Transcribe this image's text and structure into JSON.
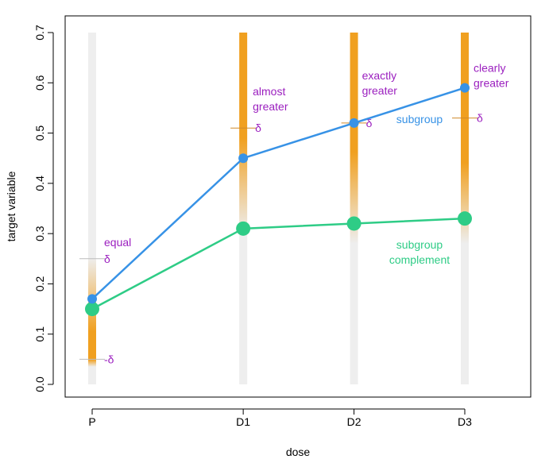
{
  "chart_data": {
    "type": "line",
    "xlabel": "dose",
    "ylabel": "target variable",
    "ylim": [
      0.0,
      0.7
    ],
    "yticks": [
      0.0,
      0.1,
      0.2,
      0.3,
      0.4,
      0.5,
      0.6,
      0.7
    ],
    "ytick_labels": [
      "0.0",
      "0.1",
      "0.2",
      "0.3",
      "0.4",
      "0.5",
      "0.6",
      "0.7"
    ],
    "categories": [
      "P",
      "D1",
      "D2",
      "D3"
    ],
    "x": [
      0,
      3,
      5.2,
      7.4
    ],
    "series": [
      {
        "name": "subgroup",
        "values": [
          0.17,
          0.45,
          0.52,
          0.59
        ],
        "color": "#3792e6"
      },
      {
        "name": "subgroup complement",
        "values": [
          0.15,
          0.31,
          0.32,
          0.33
        ],
        "color": "#2ecc86"
      }
    ],
    "delta_marks": [
      {
        "category": "P",
        "values": [
          0.25,
          0.05
        ],
        "labels": [
          "δ",
          "-δ"
        ]
      },
      {
        "category": "D1",
        "values": [
          0.51
        ],
        "labels": [
          "δ"
        ]
      },
      {
        "category": "D2",
        "values": [
          0.52
        ],
        "labels": [
          "δ"
        ]
      },
      {
        "category": "D3",
        "values": [
          0.53
        ],
        "labels": [
          "δ"
        ]
      }
    ],
    "annotations": [
      {
        "category": "P",
        "lines": [
          "equal"
        ]
      },
      {
        "category": "D1",
        "lines": [
          "almost",
          "greater"
        ]
      },
      {
        "category": "D2",
        "lines": [
          "exactly",
          "greater"
        ]
      },
      {
        "category": "D3",
        "lines": [
          "clearly",
          "greater"
        ]
      }
    ],
    "series_labels": [
      {
        "lines": [
          "subgroup"
        ]
      },
      {
        "lines": [
          "subgroup",
          "complement"
        ]
      }
    ],
    "colors": {
      "annotation": "#9b1fbf",
      "band_gray": "#eeeeee",
      "band_orange": "#f0a020",
      "frame": "#000000"
    }
  }
}
